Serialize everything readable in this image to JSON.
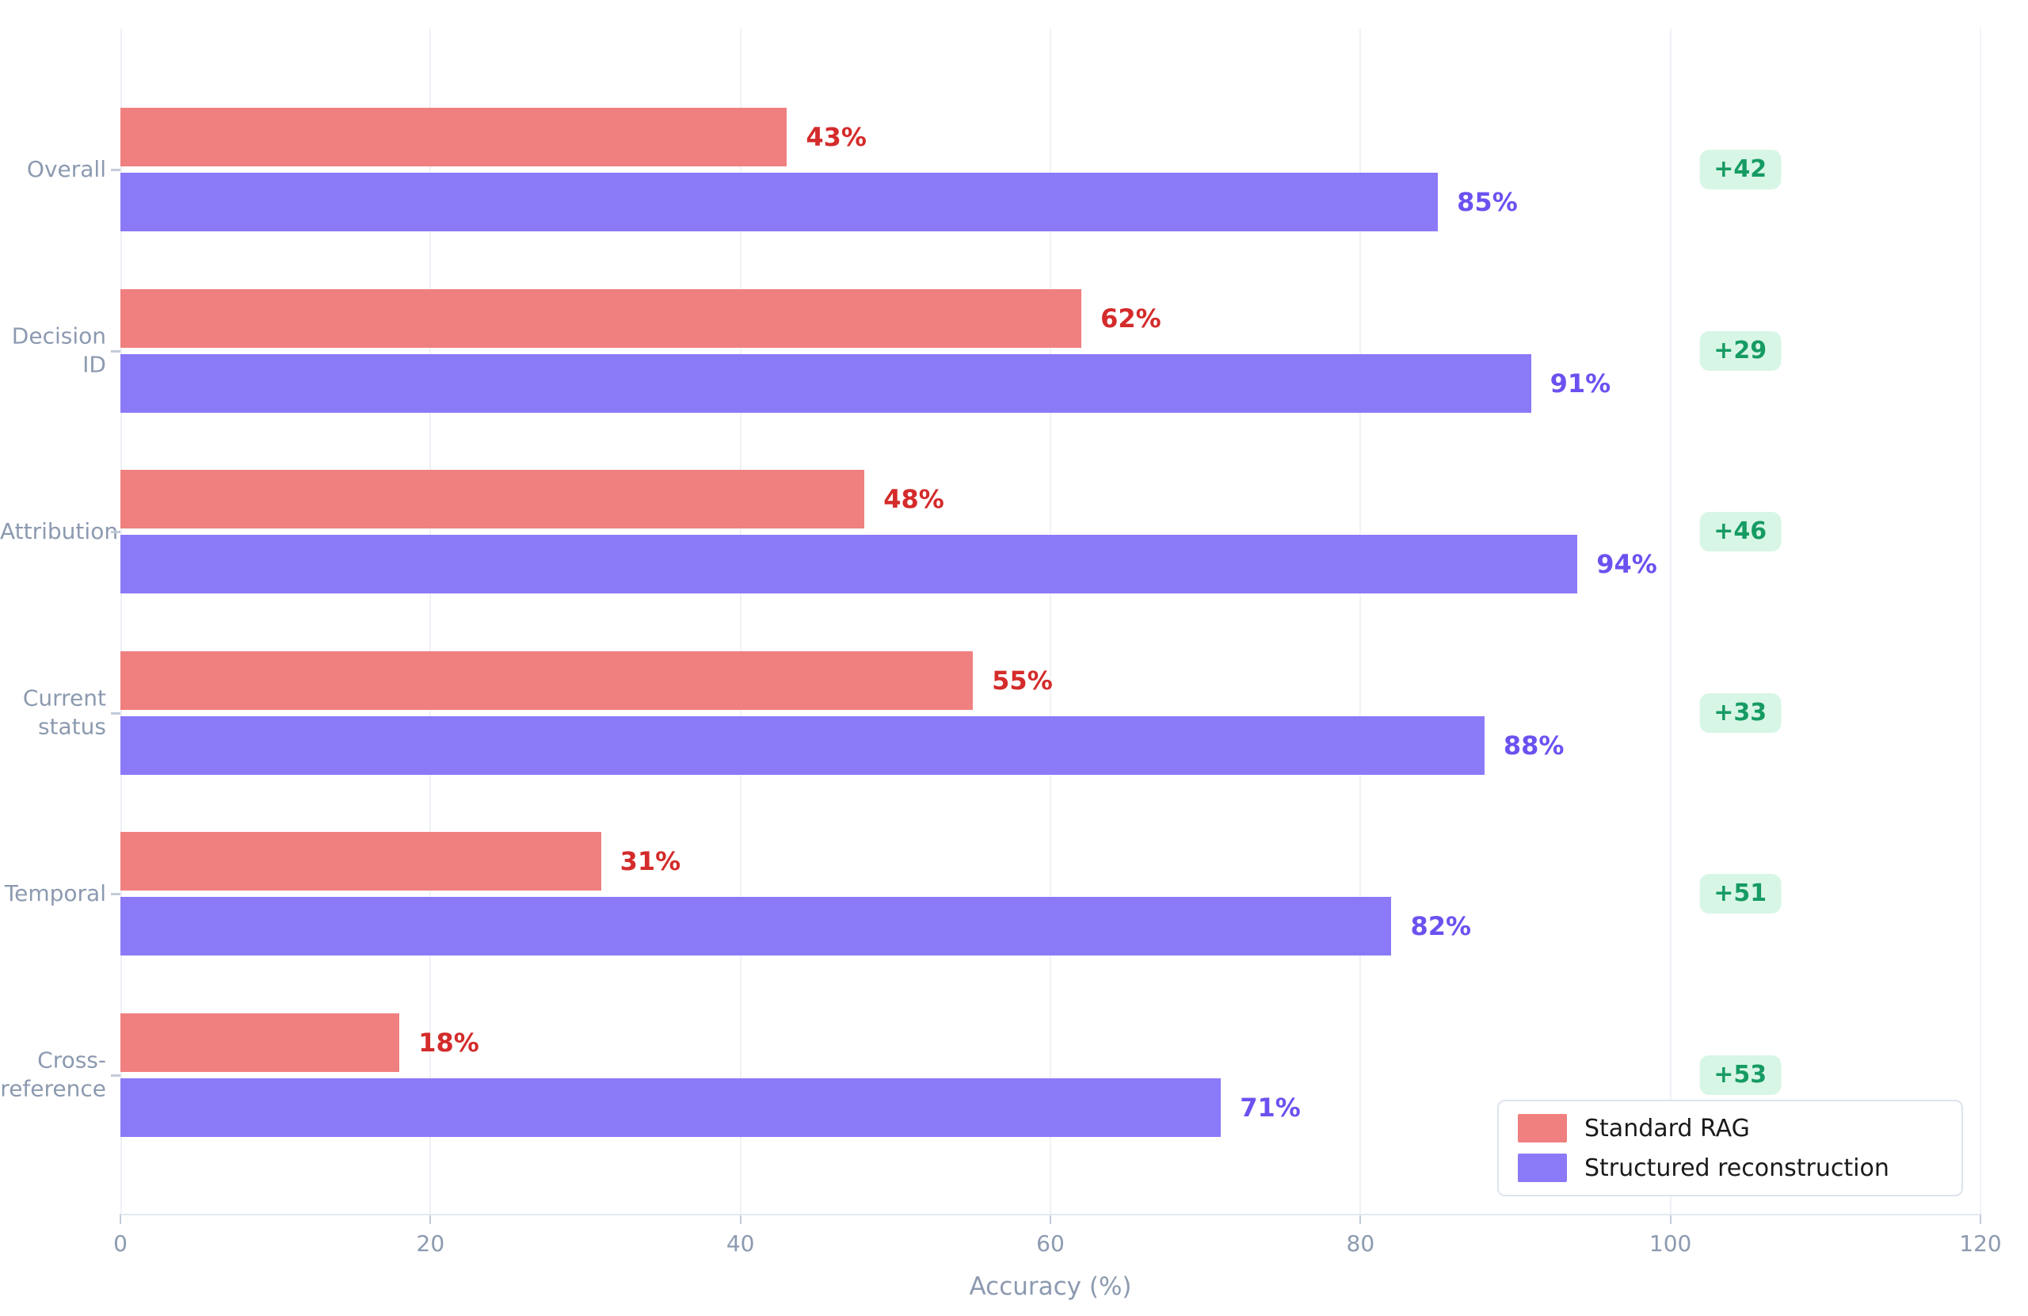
{
  "chart_data": {
    "type": "bar",
    "orientation": "horizontal",
    "title": "",
    "xlabel": "Accuracy (%)",
    "ylabel": "",
    "xlim": [
      0,
      120
    ],
    "xticks": [
      0,
      20,
      40,
      60,
      80,
      100,
      120
    ],
    "grid": "vertical-light",
    "legend_position": "lower-right",
    "categories": [
      "Overall",
      "Decision ID",
      "Attribution",
      "Current status",
      "Temporal",
      "Cross-reference"
    ],
    "series": [
      {
        "name": "Standard RAG",
        "color": "#F08080",
        "values": [
          43,
          62,
          48,
          55,
          31,
          18
        ]
      },
      {
        "name": "Structured reconstruction",
        "color": "#8B7AF8",
        "values": [
          85,
          91,
          94,
          88,
          82,
          71
        ]
      }
    ],
    "deltas": [
      "+42",
      "+29",
      "+46",
      "+33",
      "+51",
      "+53"
    ]
  },
  "rows": [
    {
      "category_display": "Overall",
      "rag_value": 43,
      "rag_label": "43%",
      "recon_value": 85,
      "recon_label": "85%",
      "delta_label": "+42"
    },
    {
      "category_display": "Decision\nID",
      "rag_value": 62,
      "rag_label": "62%",
      "recon_value": 91,
      "recon_label": "91%",
      "delta_label": "+29"
    },
    {
      "category_display": "Attribution",
      "rag_value": 48,
      "rag_label": "48%",
      "recon_value": 94,
      "recon_label": "94%",
      "delta_label": "+46"
    },
    {
      "category_display": "Current\nstatus",
      "rag_value": 55,
      "rag_label": "55%",
      "recon_value": 88,
      "recon_label": "88%",
      "delta_label": "+33"
    },
    {
      "category_display": "Temporal",
      "rag_value": 31,
      "rag_label": "31%",
      "recon_value": 82,
      "recon_label": "82%",
      "delta_label": "+51"
    },
    {
      "category_display": "Cross-\nreference",
      "rag_value": 18,
      "rag_label": "18%",
      "recon_value": 71,
      "recon_label": "71%",
      "delta_label": "+53"
    }
  ],
  "axis": {
    "xlabel": "Accuracy (%)",
    "tick_labels": [
      "0",
      "20",
      "40",
      "60",
      "80",
      "100",
      "120"
    ],
    "tick_values": [
      0,
      20,
      40,
      60,
      80,
      100,
      120
    ]
  },
  "legend": {
    "items": [
      {
        "label": "Standard RAG",
        "color": "#F08080"
      },
      {
        "label": "Structured reconstruction",
        "color": "#8B7AF8"
      }
    ]
  },
  "colors": {
    "bar_rag": "#F08080",
    "bar_recon": "#8B7AF8",
    "value_text_rag": "#D42B2B",
    "value_text_recon": "#6A52F0",
    "badge_bg": "#D8F6E6",
    "badge_text": "#169B63",
    "axis_text": "#8C9AB0"
  }
}
